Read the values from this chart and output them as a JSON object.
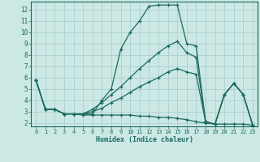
{
  "xlabel": "Humidex (Indice chaleur)",
  "bg_color": "#cce8e5",
  "grid_color": "#aacfcc",
  "line_color": "#1a6b5a",
  "xlim": [
    -0.5,
    23.5
  ],
  "ylim": [
    1.7,
    12.7
  ],
  "xticks": [
    0,
    1,
    2,
    3,
    4,
    5,
    6,
    7,
    8,
    9,
    10,
    11,
    12,
    13,
    14,
    15,
    16,
    17,
    18,
    19,
    20,
    21,
    22,
    23
  ],
  "yticks": [
    2,
    3,
    4,
    5,
    6,
    7,
    8,
    9,
    10,
    11,
    12
  ],
  "line1_x": [
    0,
    1,
    2,
    3,
    4,
    5,
    6,
    7,
    8,
    9,
    10,
    11,
    12,
    13,
    14,
    15,
    16,
    17,
    18,
    19,
    20,
    21,
    22,
    23
  ],
  "line1_y": [
    5.8,
    3.2,
    3.2,
    2.8,
    2.8,
    2.8,
    2.8,
    4.0,
    5.0,
    8.5,
    10.0,
    11.0,
    12.3,
    12.4,
    12.4,
    12.4,
    9.0,
    8.8,
    2.1,
    1.9,
    4.5,
    5.5,
    4.5,
    1.8
  ],
  "line2_x": [
    0,
    1,
    2,
    3,
    4,
    5,
    6,
    7,
    8,
    9,
    10,
    11,
    12,
    13,
    14,
    15,
    16,
    17,
    18,
    19,
    20,
    21,
    22,
    23
  ],
  "line2_y": [
    5.8,
    3.2,
    3.2,
    2.8,
    2.8,
    2.8,
    3.2,
    3.8,
    4.5,
    5.2,
    6.0,
    6.8,
    7.5,
    8.2,
    8.8,
    9.2,
    8.2,
    7.8,
    2.1,
    1.9,
    4.5,
    5.5,
    4.5,
    1.8
  ],
  "line3_x": [
    0,
    1,
    2,
    3,
    4,
    5,
    6,
    7,
    8,
    9,
    10,
    11,
    12,
    13,
    14,
    15,
    16,
    17,
    18,
    19,
    20,
    21,
    22,
    23
  ],
  "line3_y": [
    5.8,
    3.2,
    3.2,
    2.8,
    2.8,
    2.8,
    3.0,
    3.3,
    3.8,
    4.2,
    4.7,
    5.2,
    5.6,
    6.0,
    6.5,
    6.8,
    6.5,
    6.3,
    2.1,
    1.9,
    4.5,
    5.5,
    4.5,
    1.8
  ],
  "line4_x": [
    0,
    1,
    2,
    3,
    4,
    5,
    6,
    7,
    8,
    9,
    10,
    11,
    12,
    13,
    14,
    15,
    16,
    17,
    18,
    19,
    20,
    21,
    22,
    23
  ],
  "line4_y": [
    5.8,
    3.2,
    3.2,
    2.8,
    2.8,
    2.7,
    2.7,
    2.7,
    2.7,
    2.7,
    2.7,
    2.6,
    2.6,
    2.5,
    2.5,
    2.4,
    2.3,
    2.1,
    2.0,
    1.9,
    1.9,
    1.9,
    1.9,
    1.8
  ]
}
